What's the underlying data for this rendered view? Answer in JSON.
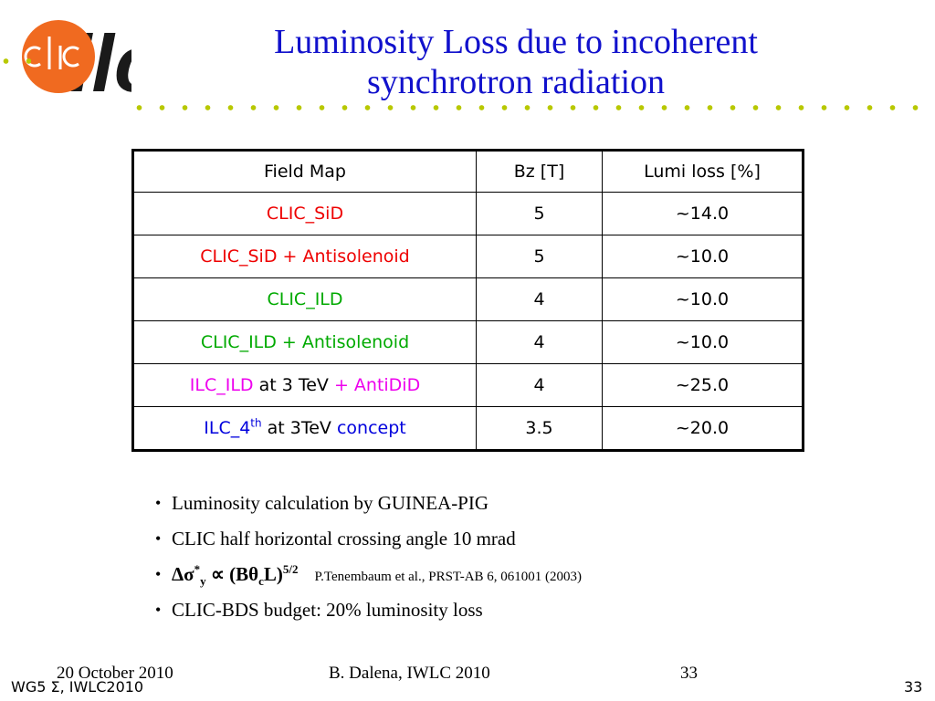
{
  "logo": {
    "text_clic": "CLIC",
    "text_ilc": "ilc"
  },
  "title": {
    "line1": "Luminosity Loss due to incoherent",
    "line2": "synchrotron radiation"
  },
  "table": {
    "headers": [
      "Field Map",
      "Bz [T]",
      "Lumi loss [%]"
    ],
    "rows": [
      {
        "map_main": "CLIC_SiD",
        "map_rest": "",
        "map_extra": "",
        "bz": "5",
        "lumi": "~14.0"
      },
      {
        "map_main": "CLIC_SiD + Antisolenoid",
        "map_rest": "",
        "map_extra": "",
        "bz": "5",
        "lumi": "~10.0"
      },
      {
        "map_main": "CLIC_ILD",
        "map_rest": "",
        "map_extra": "",
        "bz": "4",
        "lumi": "~10.0"
      },
      {
        "map_main": "CLIC_ILD + Antisolenoid",
        "map_rest": "",
        "map_extra": "",
        "bz": "4",
        "lumi": "~10.0"
      },
      {
        "map_main": "ILC_ILD",
        "map_rest": " at 3 TeV ",
        "map_extra": "+ AntiDiD",
        "bz": "4",
        "lumi": "~25.0"
      },
      {
        "map_main": "ILC_4",
        "map_sup": "th",
        "map_rest": " at 3TeV ",
        "map_extra": "concept",
        "bz": "3.5",
        "lumi": "~20.0"
      }
    ],
    "colors": {
      "clic_sid": "#ee0000",
      "clic_ild": "#00aa00",
      "ilc_ild": "#ee00ee",
      "ilc_4th": "#0000dd"
    }
  },
  "notes": {
    "item1": "Luminosity calculation by GUINEA-PIG",
    "item2": "CLIC half horizontal crossing angle 10 mrad",
    "formula": {
      "lhs": "Δσ",
      "lhs_sup": "*",
      "lhs_sub": "y",
      "op": " ∝ (Bθ",
      "sub_c": "c",
      "rhs": "L)",
      "exp": "5/2"
    },
    "reference": "P.Tenembaum et al., PRST-AB 6, 061001 (2003)",
    "item4": "CLIC-BDS budget: 20% luminosity loss"
  },
  "footer": {
    "date": "20 October 2010",
    "author": "B. Dalena, IWLC 2010",
    "page": "33",
    "workshop": "WG5 Σ, IWLC2010",
    "page2": "33"
  },
  "colors": {
    "title": "#1111cc",
    "dots": "#b8c800",
    "logo_orange": "#f06a20"
  }
}
